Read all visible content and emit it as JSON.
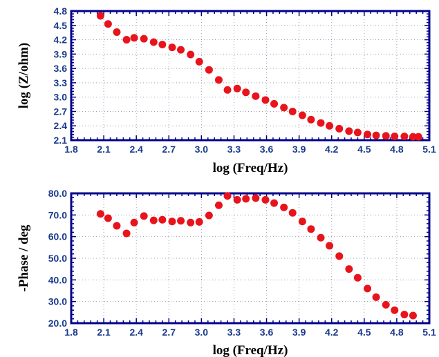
{
  "chart_data": [
    {
      "type": "scatter",
      "title": "",
      "xlabel": "log (Freq/Hz)",
      "ylabel": "log (Z/ohm)",
      "xlim": [
        1.8,
        5.1
      ],
      "ylim": [
        2.1,
        4.8
      ],
      "x_ticks": [
        "1.8",
        "2.1",
        "2.4",
        "2.7",
        "3.0",
        "3.3",
        "3.6",
        "3.9",
        "4.2",
        "4.5",
        "4.8",
        "5.1"
      ],
      "y_ticks": [
        "2.1",
        "2.4",
        "2.7",
        "3.0",
        "3.3",
        "3.6",
        "3.9",
        "4.2",
        "4.5",
        "4.8"
      ],
      "grid": true,
      "marker_color": "#e8141c",
      "series": [
        {
          "x": [
            2.07,
            2.14,
            2.22,
            2.31,
            2.38,
            2.47,
            2.56,
            2.64,
            2.73,
            2.81,
            2.9,
            2.98,
            3.07,
            3.16,
            3.24,
            3.33,
            3.41,
            3.5,
            3.59,
            3.67,
            3.76,
            3.84,
            3.93,
            4.01,
            4.1,
            4.18,
            4.27,
            4.36,
            4.44,
            4.53,
            4.61,
            4.7,
            4.78,
            4.87,
            4.95,
            5.0
          ],
          "y": [
            4.7,
            4.53,
            4.36,
            4.2,
            4.24,
            4.22,
            4.15,
            4.1,
            4.04,
            3.99,
            3.89,
            3.74,
            3.57,
            3.36,
            3.15,
            3.18,
            3.1,
            3.02,
            2.94,
            2.86,
            2.78,
            2.7,
            2.62,
            2.53,
            2.46,
            2.4,
            2.34,
            2.29,
            2.26,
            2.22,
            2.2,
            2.19,
            2.18,
            2.18,
            2.17,
            2.17
          ]
        }
      ]
    },
    {
      "type": "scatter",
      "title": "",
      "xlabel": "log (Freq/Hz)",
      "ylabel": "-Phase / deg",
      "xlim": [
        1.8,
        5.1
      ],
      "ylim": [
        20.0,
        80.0
      ],
      "x_ticks": [
        "1.8",
        "2.1",
        "2.4",
        "2.7",
        "3.0",
        "3.3",
        "3.6",
        "3.9",
        "4.2",
        "4.5",
        "4.8",
        "5.1"
      ],
      "y_ticks": [
        "20.0",
        "30.0",
        "40.0",
        "50.0",
        "60.0",
        "70.0",
        "80.0"
      ],
      "grid": true,
      "marker_color": "#e8141c",
      "series": [
        {
          "x": [
            2.07,
            2.14,
            2.22,
            2.31,
            2.38,
            2.47,
            2.56,
            2.64,
            2.73,
            2.81,
            2.9,
            2.98,
            3.07,
            3.16,
            3.24,
            3.33,
            3.41,
            3.5,
            3.59,
            3.67,
            3.76,
            3.84,
            3.93,
            4.01,
            4.1,
            4.18,
            4.27,
            4.36,
            4.44,
            4.53,
            4.61,
            4.7,
            4.78,
            4.87,
            4.95
          ],
          "y": [
            70.5,
            68.5,
            65.0,
            61.5,
            66.5,
            69.5,
            67.5,
            67.8,
            67.0,
            67.3,
            66.5,
            66.8,
            69.8,
            74.5,
            78.8,
            77.0,
            77.5,
            77.8,
            77.0,
            75.5,
            73.5,
            71.0,
            67.0,
            63.5,
            59.5,
            55.8,
            51.0,
            45.0,
            41.0,
            36.0,
            32.0,
            28.5,
            26.0,
            24.0,
            23.5
          ]
        }
      ]
    }
  ]
}
